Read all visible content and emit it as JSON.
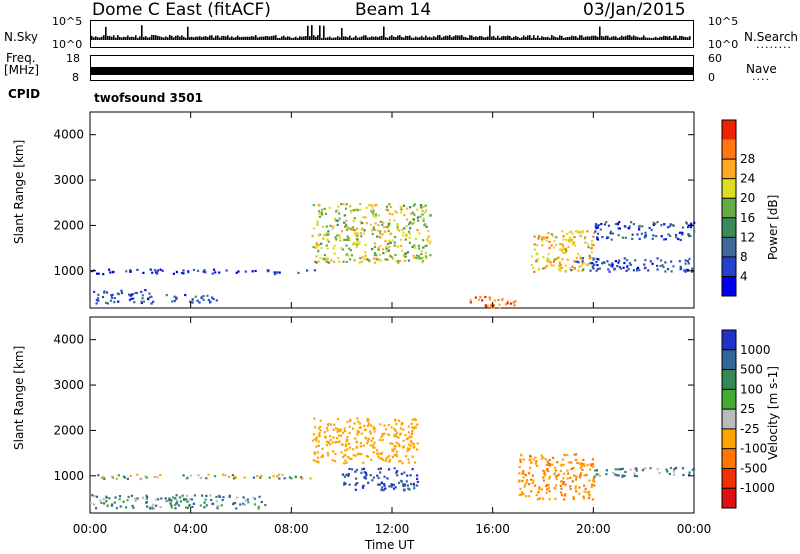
{
  "header": {
    "station": "Dome C East (fitACF)",
    "beam": "Beam 14",
    "date": "03/Jan/2015"
  },
  "side_labels": {
    "nsky": "N.Sky",
    "freq": "Freq.",
    "freq_unit": "[MHz]",
    "cpid": "CPID",
    "nsearch": "N.Search",
    "nsearch_dots": "........",
    "nave": "Nave",
    "nave_dots": "....",
    "nsky_top": "10^5",
    "nsky_bottom": "10^0",
    "nsearch_top": "10^5",
    "nsearch_bottom": "10^0",
    "freq_top": "18",
    "freq_bottom": "8",
    "nave_top": "60",
    "nave_bottom": "0",
    "cpid_value": "twofsound 3501"
  },
  "colors": {
    "power": [
      "#0000ee",
      "#2244cc",
      "#3d6a9a",
      "#3a8a5a",
      "#66aa44",
      "#dddd22",
      "#ffaa22",
      "#ff7711",
      "#ee2200"
    ],
    "velocity": [
      "#2233cc",
      "#336699",
      "#338855",
      "#44aa33",
      "#bbbbbb",
      "#ffa500",
      "#ff7700",
      "#ee3300",
      "#dd1111"
    ]
  },
  "chart_data": [
    {
      "type": "heatmap",
      "title": "Power",
      "ylabel": "Slant Range [km]",
      "xlabel": "",
      "colorbar_label": "Power [dB]",
      "colorbar_ticks": [
        "4",
        "8",
        "12",
        "16",
        "20",
        "24",
        "28"
      ],
      "ylim": [
        180,
        4500
      ],
      "yticks": [
        "1000",
        "2000",
        "3000",
        "4000"
      ],
      "xlim_hours": [
        0,
        24
      ],
      "echo_regions": [
        {
          "t": [
            0.0,
            2.5
          ],
          "range": [
            300,
            600
          ],
          "power": 8
        },
        {
          "t": [
            3.0,
            5.0
          ],
          "range": [
            300,
            500
          ],
          "power": 10
        },
        {
          "t": [
            0.0,
            9.0
          ],
          "range": [
            950,
            1050
          ],
          "power": 6
        },
        {
          "t": [
            8.8,
            13.5
          ],
          "range": [
            1200,
            2500
          ],
          "power": 20
        },
        {
          "t": [
            15.0,
            17.0
          ],
          "range": [
            200,
            450
          ],
          "power": 28
        },
        {
          "t": [
            17.5,
            20.0
          ],
          "range": [
            1000,
            1900
          ],
          "power": 24
        },
        {
          "t": [
            19.0,
            24.0
          ],
          "range": [
            1000,
            1300
          ],
          "power": 8
        },
        {
          "t": [
            20.0,
            24.0
          ],
          "range": [
            1700,
            2100
          ],
          "power": 8
        }
      ]
    },
    {
      "type": "heatmap",
      "title": "Velocity",
      "ylabel": "Slant Range [km]",
      "xlabel": "Time UT",
      "colorbar_label": "Velocity [m s-1]",
      "colorbar_ticks": [
        "1000",
        "500",
        "100",
        "25",
        "-25",
        "-100",
        "-500",
        "-1000"
      ],
      "ylim": [
        180,
        4500
      ],
      "yticks": [
        "1000",
        "2000",
        "3000",
        "4000"
      ],
      "xticks": [
        "00:00",
        "04:00",
        "08:00",
        "12:00",
        "16:00",
        "20:00",
        "00:00"
      ],
      "xlim_hours": [
        0,
        24
      ],
      "echo_regions": [
        {
          "t": [
            0.0,
            7.0
          ],
          "range": [
            300,
            600
          ],
          "velocity": 100
        },
        {
          "t": [
            0.0,
            9.0
          ],
          "range": [
            950,
            1050
          ],
          "velocity": 0
        },
        {
          "t": [
            8.8,
            13.0
          ],
          "range": [
            1300,
            2300
          ],
          "velocity": -300
        },
        {
          "t": [
            10.0,
            13.0
          ],
          "range": [
            700,
            1200
          ],
          "velocity": 500
        },
        {
          "t": [
            17.0,
            20.0
          ],
          "range": [
            500,
            1500
          ],
          "velocity": -500
        },
        {
          "t": [
            20.0,
            24.0
          ],
          "range": [
            1000,
            1200
          ],
          "velocity": 100
        }
      ]
    }
  ]
}
